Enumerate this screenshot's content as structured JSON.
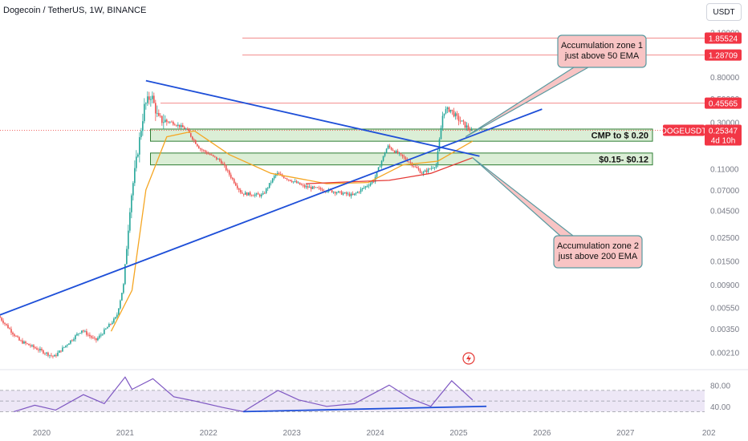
{
  "header": {
    "symbol_title": "Dogecoin / TetherUS, 1W, BINANCE",
    "currency": "USDT"
  },
  "colors": {
    "up": "#26a69a",
    "down": "#ef5350",
    "ema50": "#f5a623",
    "ema200": "#e53935",
    "trendline": "#1e4fd8",
    "zone_fill": "#cfe8c8",
    "zone_border": "#2e7d32",
    "callout_fill": "#f8c4c4",
    "callout_border": "#5a9aa0",
    "rsi_line": "#7e57c2",
    "rsi_band": "#ede7f6",
    "resistance": "#f28b8b"
  },
  "chart_data": {
    "type": "candlestick",
    "x_axis": {
      "start": "2019-07",
      "end": "2027-12",
      "tick_labels": [
        "2020",
        "2021",
        "2022",
        "2023",
        "2024",
        "2025",
        "2026",
        "2027",
        "202"
      ]
    },
    "y_axis": {
      "scale": "log",
      "range": [
        0.0016,
        2.6
      ],
      "tick_labels": [
        "2.10000",
        "0.80000",
        "0.50000",
        "0.30000",
        "0.11000",
        "0.07000",
        "0.04500",
        "0.02500",
        "0.01500",
        "0.00900",
        "0.00550",
        "0.00350",
        "0.00210"
      ]
    },
    "price_labels": [
      {
        "name": "resistance-1",
        "value": "1.85524",
        "price": 1.85524
      },
      {
        "name": "resistance-2",
        "value": "1.28709",
        "price": 1.28709
      },
      {
        "name": "resistance-3",
        "value": "0.45565",
        "price": 0.45565
      }
    ],
    "current_price": {
      "symbol": "DOGEUSDT",
      "value": "0.25347",
      "countdown": "4d 10h",
      "price": 0.25347
    },
    "zones": [
      {
        "label": "CMP to $ 0.20",
        "low": 0.2,
        "high": 0.26,
        "start": "2021-05"
      },
      {
        "label": "$0.15- $0.12",
        "low": 0.12,
        "high": 0.155,
        "start": "2021-05"
      }
    ],
    "callouts": [
      {
        "text": [
          "Accumulation zone 1",
          "just above 50 EMA"
        ],
        "anchor_date": "2025-02",
        "anchor_price": 0.22
      },
      {
        "text": [
          "Accumulation zone 2",
          "just above 200 EMA"
        ],
        "anchor_date": "2025-03",
        "anchor_price": 0.14
      }
    ],
    "trendlines": [
      {
        "name": "upper-trendline",
        "from": {
          "date": "2021-04",
          "price": 0.74
        },
        "to": {
          "date": "2025-04",
          "price": 0.145
        }
      },
      {
        "name": "lower-trendline",
        "from": {
          "date": "2019-07",
          "price": 0.0047
        },
        "to": {
          "date": "2026-01",
          "price": 0.4
        }
      }
    ],
    "price_points": [
      {
        "date": "2019-07",
        "price": 0.0046
      },
      {
        "date": "2019-10",
        "price": 0.0027
      },
      {
        "date": "2020-03",
        "price": 0.0019
      },
      {
        "date": "2020-07",
        "price": 0.0034
      },
      {
        "date": "2020-09",
        "price": 0.0027
      },
      {
        "date": "2020-12",
        "price": 0.0045
      },
      {
        "date": "2021-01",
        "price": 0.009
      },
      {
        "date": "2021-02",
        "price": 0.055
      },
      {
        "date": "2021-04",
        "price": 0.42
      },
      {
        "date": "2021-05",
        "price": 0.55
      },
      {
        "date": "2021-06",
        "price": 0.32
      },
      {
        "date": "2021-08",
        "price": 0.3
      },
      {
        "date": "2021-10",
        "price": 0.26
      },
      {
        "date": "2021-12",
        "price": 0.17
      },
      {
        "date": "2022-03",
        "price": 0.13
      },
      {
        "date": "2022-06",
        "price": 0.065
      },
      {
        "date": "2022-09",
        "price": 0.062
      },
      {
        "date": "2022-11",
        "price": 0.1
      },
      {
        "date": "2023-03",
        "price": 0.075
      },
      {
        "date": "2023-07",
        "price": 0.068
      },
      {
        "date": "2023-10",
        "price": 0.062
      },
      {
        "date": "2024-01",
        "price": 0.085
      },
      {
        "date": "2024-03",
        "price": 0.18
      },
      {
        "date": "2024-06",
        "price": 0.13
      },
      {
        "date": "2024-08",
        "price": 0.1
      },
      {
        "date": "2024-10",
        "price": 0.12
      },
      {
        "date": "2024-11",
        "price": 0.38
      },
      {
        "date": "2024-12",
        "price": 0.4
      },
      {
        "date": "2025-01",
        "price": 0.33
      },
      {
        "date": "2025-03",
        "price": 0.25
      }
    ],
    "ema50": [
      {
        "date": "2020-11",
        "price": 0.0033
      },
      {
        "date": "2021-02",
        "price": 0.008
      },
      {
        "date": "2021-04",
        "price": 0.07
      },
      {
        "date": "2021-07",
        "price": 0.22
      },
      {
        "date": "2021-11",
        "price": 0.25
      },
      {
        "date": "2022-04",
        "price": 0.15
      },
      {
        "date": "2022-10",
        "price": 0.1
      },
      {
        "date": "2023-06",
        "price": 0.08
      },
      {
        "date": "2023-12",
        "price": 0.082
      },
      {
        "date": "2024-05",
        "price": 0.12
      },
      {
        "date": "2024-10",
        "price": 0.13
      },
      {
        "date": "2025-03",
        "price": 0.2
      }
    ],
    "ema200": [
      {
        "date": "2023-03",
        "price": 0.08
      },
      {
        "date": "2023-09",
        "price": 0.083
      },
      {
        "date": "2024-03",
        "price": 0.086
      },
      {
        "date": "2024-09",
        "price": 0.1
      },
      {
        "date": "2025-03",
        "price": 0.14
      }
    ],
    "rsi": {
      "tick_labels": [
        "80.00",
        "40.00"
      ],
      "levels": [
        70,
        50,
        30
      ],
      "range": [
        20,
        100
      ],
      "points": [
        {
          "date": "2019-09",
          "value": 30
        },
        {
          "date": "2019-12",
          "value": 42
        },
        {
          "date": "2020-03",
          "value": 33
        },
        {
          "date": "2020-07",
          "value": 62
        },
        {
          "date": "2020-10",
          "value": 45
        },
        {
          "date": "2021-01",
          "value": 95
        },
        {
          "date": "2021-02",
          "value": 72
        },
        {
          "date": "2021-05",
          "value": 92
        },
        {
          "date": "2021-08",
          "value": 58
        },
        {
          "date": "2021-11",
          "value": 50
        },
        {
          "date": "2022-03",
          "value": 38
        },
        {
          "date": "2022-06",
          "value": 30
        },
        {
          "date": "2022-11",
          "value": 70
        },
        {
          "date": "2023-02",
          "value": 52
        },
        {
          "date": "2023-06",
          "value": 40
        },
        {
          "date": "2023-10",
          "value": 45
        },
        {
          "date": "2024-03",
          "value": 80
        },
        {
          "date": "2024-06",
          "value": 55
        },
        {
          "date": "2024-09",
          "value": 40
        },
        {
          "date": "2024-12",
          "value": 88
        },
        {
          "date": "2025-03",
          "value": 52
        }
      ],
      "trendline": {
        "from": {
          "date": "2022-06",
          "value": 30
        },
        "to": {
          "date": "2025-05",
          "value": 40
        }
      }
    }
  }
}
